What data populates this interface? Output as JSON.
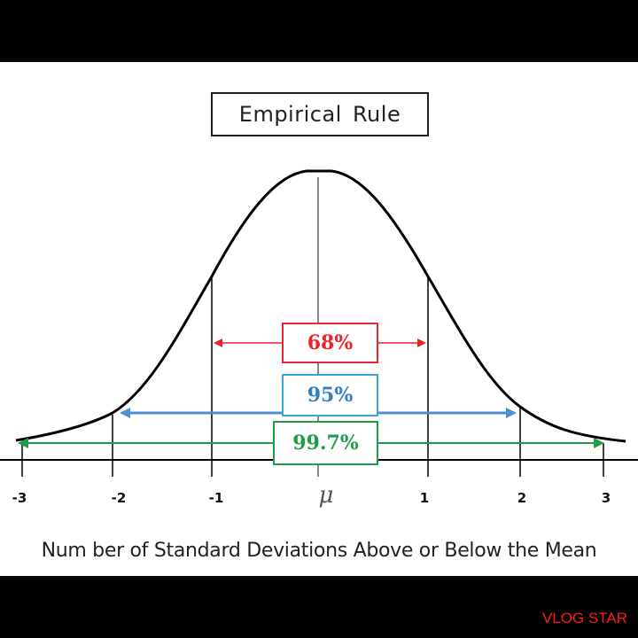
{
  "title": "Empirical Rule",
  "xlabel": "Num ber of Standard Deviations Above or Below the Mean",
  "ticks": [
    "-3",
    "-2",
    "-1",
    "μ",
    "1",
    "2",
    "3"
  ],
  "percentages": {
    "p68": "68%",
    "p95": "95%",
    "p997": "99.7%"
  },
  "colors": {
    "p68": "#e8242c",
    "p95": "#4f8fd6",
    "p997": "#1f9e4a",
    "curve": "#000000"
  },
  "watermark": "VLOG STAR"
}
